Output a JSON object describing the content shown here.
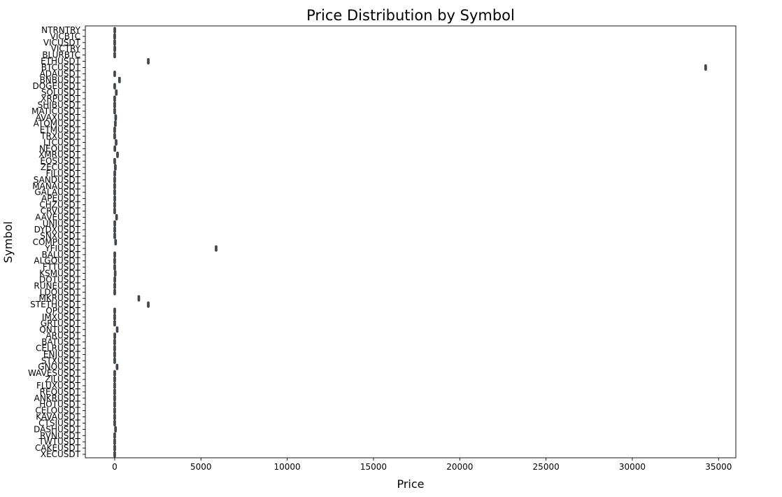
{
  "chart_data": {
    "type": "box",
    "orientation": "horizontal",
    "title": "Price Distribution by Symbol",
    "xlabel": "Price",
    "ylabel": "Symbol",
    "xlim": [
      -1700,
      36000
    ],
    "xticks": [
      0,
      5000,
      10000,
      15000,
      20000,
      25000,
      30000,
      35000
    ],
    "grid": false,
    "legend": "none",
    "box_color": "#4c72b0",
    "edge_color": "#3f3f3f",
    "categories": [
      "NTRNTRY",
      "VICBTC",
      "VICUSDT",
      "VICTRY",
      "BLURBTC",
      "ETHUSDT",
      "BTCUSDT",
      "ADAUSDT",
      "BNBUSDT",
      "DOGEUSDT",
      "SOLUSDT",
      "XRPUSDT",
      "SHIBUSDT",
      "MATICUSDT",
      "AVAXUSDT",
      "ATOMUSDT",
      "ETMUSDT",
      "TRXUSDT",
      "LTCUSDT",
      "NEOUSDT",
      "XMRUSDT",
      "EOSUSDT",
      "ZECUSDT",
      "FILUSDT",
      "SANDUSDT",
      "MANAUSDT",
      "GALAUSDT",
      "APEUSDT",
      "CHZUSDT",
      "CRVUSDT",
      "AAVEUSDT",
      "UNIUSDT",
      "DYDXUSDT",
      "SNXUSDT",
      "COMPUSDT",
      "YFIUSDT",
      "BALUSDT",
      "ALGOUSDT",
      "FTTUSDT",
      "KSMUSDT",
      "DOTUSDT",
      "RUNEUSDT",
      "LDOUSDT",
      "MKRUSDT",
      "STETHUSDT",
      "OPUSDT",
      "IMXUSDT",
      "GRTUSDT",
      "QNTUSDT",
      "ARUSDT",
      "BATUSDT",
      "CELRUSDT",
      "ENJUSDT",
      "STXUSDT",
      "GNOUSDT",
      "WAVESUSDT",
      "ZILUSDT",
      "FLUXUSDT",
      "REQUSDT",
      "ANKRUSDT",
      "HOTUSDT",
      "CELOUSDT",
      "KAVAUSDT",
      "CTSIUSDT",
      "DASHUSDT",
      "RVNUSDT",
      "TWTUSDT",
      "CAKEUSDT",
      "XECUSDT"
    ],
    "series": [
      {
        "values": [
          5,
          1,
          1,
          5,
          1,
          1950,
          34250,
          1,
          280,
          1,
          95,
          1,
          1,
          1,
          60,
          40,
          1,
          1,
          85,
          10,
          165,
          1,
          40,
          5,
          1,
          1,
          1,
          5,
          1,
          1,
          110,
          6,
          3,
          3,
          55,
          5880,
          5,
          1,
          2,
          30,
          7,
          4,
          3,
          1400,
          1950,
          2,
          1,
          1,
          145,
          6,
          1,
          1,
          1,
          1,
          140,
          2,
          1,
          1,
          1,
          1,
          1,
          1,
          1,
          1,
          50,
          1,
          1,
          2,
          1
        ]
      }
    ]
  }
}
